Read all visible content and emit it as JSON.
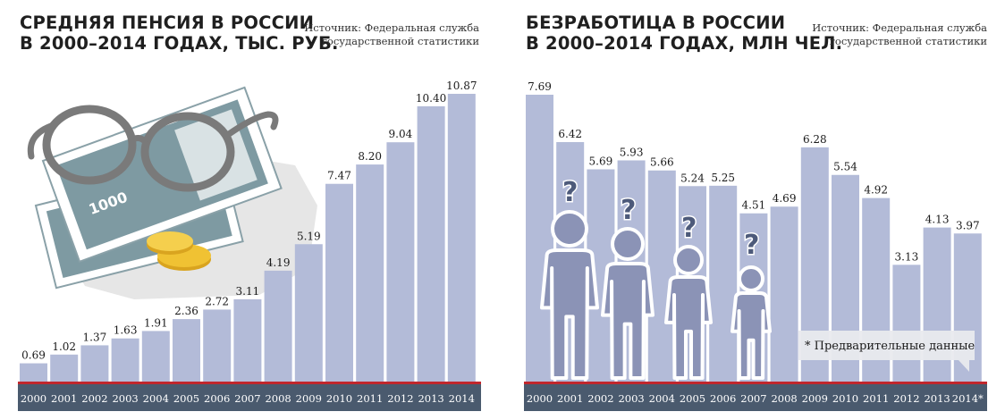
{
  "pension": {
    "title_line1": "СРЕДНЯЯ ПЕНСИЯ В РОССИИ",
    "title_line2": "В 2000–2014 ГОДАХ, ТЫС. РУБ.",
    "source_line1": "Источник: Федеральная служба",
    "source_line2": "государственной статистики",
    "banknote_label": "1000"
  },
  "unemployment": {
    "title_line1": "БЕЗРАБОТИЦА В РОССИИ",
    "title_line2": "В 2000–2014 ГОДАХ, МЛН ЧЕЛ.",
    "source_line1": "Источник: Федеральная служба",
    "source_line2": "государственной статистики",
    "footnote": "* Предварительные данные",
    "question_mark": "?"
  },
  "colors": {
    "bar": "#b3bbd8",
    "axis_band": "#4a5a6e",
    "axis_line": "#c0272d",
    "figure": "#8b93b6",
    "glasses": "#7a7a7a",
    "banknote": "#7e9aa2",
    "coin": "#f0c233"
  },
  "chart_data": [
    {
      "type": "bar",
      "title": "СРЕДНЯЯ ПЕНСИЯ В РОССИИ В 2000–2014 ГОДАХ, ТЫС. РУБ.",
      "categories": [
        "2000",
        "2001",
        "2002",
        "2003",
        "2004",
        "2005",
        "2006",
        "2007",
        "2008",
        "2009",
        "2010",
        "2011",
        "2012",
        "2013",
        "2014"
      ],
      "values": [
        0.69,
        1.02,
        1.37,
        1.63,
        1.91,
        2.36,
        2.72,
        3.11,
        4.19,
        5.19,
        7.47,
        8.2,
        9.04,
        10.4,
        10.87
      ],
      "value_labels": [
        "0.69",
        "1.02",
        "1.37",
        "1.63",
        "1.91",
        "2.36",
        "2.72",
        "3.11",
        "4.19",
        "5.19",
        "7.47",
        "8.20",
        "9.04",
        "10.40",
        "10.87"
      ],
      "ylim": [
        0,
        10.87
      ],
      "grid": false,
      "legend": "none"
    },
    {
      "type": "bar",
      "title": "БЕЗРАБОТИЦА В РОССИИ В 2000–2014 ГОДАХ, МЛН ЧЕЛ.",
      "categories": [
        "2000",
        "2001",
        "2002",
        "2003",
        "2004",
        "2005",
        "2006",
        "2007",
        "2008",
        "2009",
        "2010",
        "2011",
        "2012",
        "2013",
        "2014*"
      ],
      "values": [
        7.69,
        6.42,
        5.69,
        5.93,
        5.66,
        5.24,
        5.25,
        4.51,
        4.69,
        6.28,
        5.54,
        4.92,
        3.13,
        4.13,
        3.97
      ],
      "value_labels": [
        "7.69",
        "6.42",
        "5.69",
        "5.93",
        "5.66",
        "5.24",
        "5.25",
        "4.51",
        "4.69",
        "6.28",
        "5.54",
        "4.92",
        "3.13",
        "4.13",
        "3.97"
      ],
      "ylim": [
        0,
        7.69
      ],
      "grid": false,
      "legend": "none"
    }
  ]
}
